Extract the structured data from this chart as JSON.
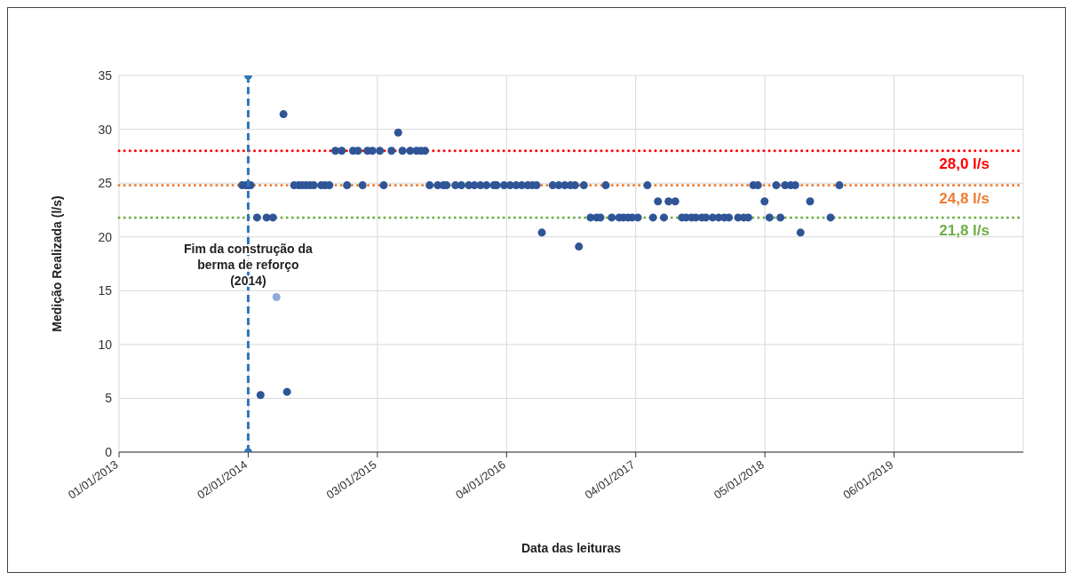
{
  "chart_data": {
    "type": "scatter",
    "xlabel": "Data das leituras",
    "ylabel": "Medição Realizada (l/s)",
    "xlim": [
      "2013-01-01",
      "2020-01-07"
    ],
    "xticks": [
      {
        "value": "2013-01-01",
        "label": "01/01/2013"
      },
      {
        "value": "2014-01-02",
        "label": "02/01/2014"
      },
      {
        "value": "2015-01-03",
        "label": "03/01/2015"
      },
      {
        "value": "2016-01-04",
        "label": "04/01/2016"
      },
      {
        "value": "2017-01-04",
        "label": "04/01/2017"
      },
      {
        "value": "2018-01-05",
        "label": "05/01/2018"
      },
      {
        "value": "2019-01-06",
        "label": "06/01/2019"
      }
    ],
    "ylim": [
      0,
      35
    ],
    "yticks": [
      0,
      5,
      10,
      15,
      20,
      25,
      30,
      35
    ],
    "grid": true,
    "marker": "circle",
    "legend": false,
    "series": [
      {
        "color": "#2f5597",
        "x": [
          "2013-12-16",
          "2013-12-27",
          "2014-01-02",
          "2014-01-09",
          "2014-01-27",
          "2014-02-06",
          "2014-02-23",
          "2014-03-13",
          "2014-04-12",
          "2014-04-22",
          "2014-05-12",
          "2014-05-25",
          "2014-06-04",
          "2014-06-15",
          "2014-06-26",
          "2014-07-07",
          "2014-07-28",
          "2014-08-08",
          "2014-08-20",
          "2014-09-06",
          "2014-09-24",
          "2014-10-09",
          "2014-10-26",
          "2014-11-09",
          "2014-11-22",
          "2014-12-06",
          "2014-12-20",
          "2015-01-10",
          "2015-01-21",
          "2015-02-12",
          "2015-03-03",
          "2015-03-15",
          "2015-04-06",
          "2015-04-24",
          "2015-05-06",
          "2015-05-18",
          "2015-05-31",
          "2015-06-23",
          "2015-07-09",
          "2015-07-18",
          "2015-08-12",
          "2015-08-29",
          "2015-09-19",
          "2015-10-05",
          "2015-10-22",
          "2015-11-08",
          "2015-11-29",
          "2015-12-07",
          "2015-12-28",
          "2016-01-14",
          "2016-01-31",
          "2016-02-16",
          "2016-03-04",
          "2016-03-17",
          "2016-03-29",
          "2016-04-13",
          "2016-05-14",
          "2016-05-31",
          "2016-06-17",
          "2016-07-03",
          "2016-07-16",
          "2016-07-27",
          "2016-08-10",
          "2016-08-29",
          "2016-09-15",
          "2016-09-26",
          "2016-10-11",
          "2016-10-28",
          "2016-11-18",
          "2016-11-30",
          "2016-12-13",
          "2016-12-25",
          "2017-01-10",
          "2017-02-06",
          "2017-02-22",
          "2017-03-08",
          "2017-03-25",
          "2017-04-07",
          "2017-04-26",
          "2017-05-15",
          "2017-05-27",
          "2017-06-11",
          "2017-06-23",
          "2017-07-10",
          "2017-07-22",
          "2017-08-10",
          "2017-08-27",
          "2017-09-12",
          "2017-09-25",
          "2017-10-21",
          "2017-11-06",
          "2017-11-19",
          "2017-12-03",
          "2017-12-16",
          "2018-01-04",
          "2018-01-18",
          "2018-02-06",
          "2018-02-18",
          "2018-03-03",
          "2018-03-19",
          "2018-04-01",
          "2018-04-16",
          "2018-05-13",
          "2018-07-10",
          "2018-08-04"
        ],
        "values": [
          24.8,
          24.8,
          24.8,
          24.8,
          21.8,
          5.3,
          21.8,
          21.8,
          31.4,
          5.6,
          24.8,
          24.8,
          24.8,
          24.8,
          24.8,
          24.8,
          24.8,
          24.8,
          24.8,
          28,
          28,
          24.8,
          28,
          28,
          24.8,
          28,
          28,
          28,
          24.8,
          28,
          29.7,
          28,
          28,
          28,
          28,
          28,
          24.8,
          24.8,
          24.8,
          24.8,
          24.8,
          24.8,
          24.8,
          24.8,
          24.8,
          24.8,
          24.8,
          24.8,
          24.8,
          24.8,
          24.8,
          24.8,
          24.8,
          24.8,
          24.8,
          20.4,
          24.8,
          24.8,
          24.8,
          24.8,
          24.8,
          19.1,
          24.8,
          21.8,
          21.8,
          21.8,
          24.8,
          21.8,
          21.8,
          21.8,
          21.8,
          21.8,
          21.8,
          24.8,
          21.8,
          23.3,
          21.8,
          23.3,
          23.3,
          21.8,
          21.8,
          21.8,
          21.8,
          21.8,
          21.8,
          21.8,
          21.8,
          21.8,
          21.8,
          21.8,
          21.8,
          21.8,
          24.8,
          24.8,
          23.3,
          21.8,
          24.8,
          21.8,
          24.8,
          24.8,
          24.8,
          20.4,
          23.3,
          21.8,
          24.8
        ]
      },
      {
        "color": "#8eaadb",
        "x": [
          "2014-03-23"
        ],
        "values": [
          14.4
        ]
      },
      {
        "type": "line",
        "color": "#2e75b6",
        "line_style": "dashed",
        "x": [
          "2014-01-02",
          "2014-01-02"
        ],
        "values": [
          35,
          0
        ]
      }
    ],
    "ref_lines": [
      {
        "axis": "y",
        "value": 28,
        "label": "28,0 l/s",
        "color": "#ff0000",
        "line_style": "dotted"
      },
      {
        "axis": "y",
        "value": 24.8,
        "label": "24,8 l/s",
        "color": "#ed7d31",
        "line_style": "dotted"
      },
      {
        "axis": "y",
        "value": 21.8,
        "label": "21,8 l/s",
        "color": "#70ad47",
        "line_style": "dotted"
      }
    ],
    "annotations": [
      {
        "text": "Fim da construção da berma de reforço (2014)",
        "x": "2014-01-02",
        "y": 18.5
      }
    ]
  }
}
